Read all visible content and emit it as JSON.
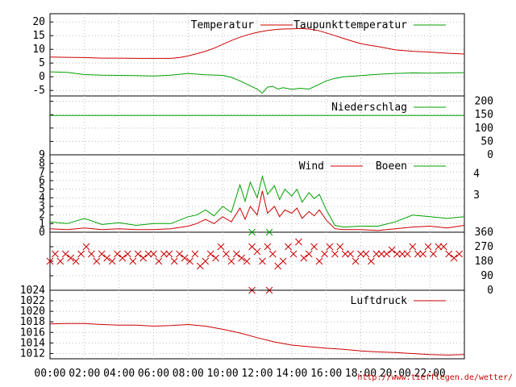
{
  "colors": {
    "red": "#cc0000",
    "green": "#00a000",
    "grid": "#bbbbbb"
  },
  "footer_url": "http://www.tiefflegen.de/wetter/",
  "x_axis": {
    "labels": [
      "00:00",
      "02:00",
      "04:00",
      "06:00",
      "08:00",
      "10:00",
      "12:00",
      "14:00",
      "16:00",
      "18:00",
      "20:00",
      "22:00"
    ],
    "hours": [
      0,
      2,
      4,
      6,
      8,
      10,
      12,
      14,
      16,
      18,
      20,
      22
    ]
  },
  "chart_data": [
    {
      "type": "line",
      "panel": "temperature",
      "ylim": [
        -7,
        23
      ],
      "yticks": [
        "20",
        "15",
        "10",
        "5",
        "0",
        "-5"
      ],
      "ytick_values": [
        20,
        15,
        10,
        5,
        0,
        -5
      ],
      "series": [
        {
          "name": "Temperatur",
          "color": "#cc0000",
          "x": [
            0,
            1,
            2,
            3,
            4,
            5,
            6,
            7,
            7.5,
            8,
            8.5,
            9,
            9.5,
            10,
            10.5,
            11,
            11.5,
            12,
            12.5,
            13,
            13.5,
            14,
            14.5,
            15,
            15.5,
            16,
            16.5,
            17,
            17.5,
            18,
            18.5,
            19,
            19.5,
            20,
            21,
            22,
            23,
            24
          ],
          "y": [
            7.2,
            7.1,
            7.0,
            6.8,
            6.8,
            6.7,
            6.7,
            6.7,
            7.0,
            7.6,
            8.4,
            9.3,
            10.4,
            11.8,
            13.2,
            14.4,
            15.4,
            16.2,
            16.8,
            17.2,
            17.4,
            17.5,
            17.6,
            17.4,
            16.9,
            16.0,
            15.0,
            14.0,
            13.0,
            12.1,
            11.5,
            11.0,
            10.4,
            9.8,
            9.3,
            9.0,
            8.6,
            8.3
          ]
        },
        {
          "name": "Taupunkttemperatur",
          "color": "#00a000",
          "x": [
            0,
            1,
            2,
            3,
            4,
            5,
            6,
            7,
            8,
            9,
            10,
            10.5,
            11,
            11.5,
            12,
            12.3,
            12.6,
            12.9,
            13.2,
            13.5,
            14,
            14.5,
            15,
            15.5,
            16,
            16.5,
            17,
            18,
            19,
            20,
            21,
            22,
            23,
            24
          ],
          "y": [
            1.8,
            1.6,
            0.8,
            0.6,
            0.5,
            0.4,
            0.3,
            0.6,
            1.2,
            0.7,
            0.5,
            -0.2,
            -1.5,
            -3.0,
            -4.5,
            -6.0,
            -3.8,
            -3.5,
            -4.5,
            -4.0,
            -4.6,
            -4.2,
            -4.5,
            -3.0,
            -1.5,
            -0.6,
            0.0,
            0.4,
            0.9,
            1.2,
            1.4,
            1.3,
            1.4,
            1.5
          ]
        }
      ]
    },
    {
      "type": "line",
      "panel": "precipitation",
      "ylim": [
        0,
        220
      ],
      "yticks": [
        "200",
        "150",
        "100",
        "50",
        "0"
      ],
      "ytick_values": [
        200,
        150,
        100,
        50,
        0
      ],
      "series": [
        {
          "name": "Niederschlag",
          "color": "#00a000",
          "x": [
            0,
            24
          ],
          "y": [
            147,
            147
          ]
        }
      ]
    },
    {
      "type": "line",
      "panel": "wind",
      "ylim": [
        0,
        9
      ],
      "yticks": [
        "9",
        "8",
        "7",
        "6",
        "5",
        "4",
        "3",
        "2",
        "1",
        "0"
      ],
      "ytick_values": [
        9,
        8,
        7,
        6,
        5,
        4,
        3,
        2,
        1,
        0
      ],
      "right_labels": [
        "4",
        "3"
      ],
      "right_label_values": [
        6.8,
        4.3
      ],
      "series": [
        {
          "name": "Wind",
          "color": "#cc0000",
          "x": [
            0,
            1,
            2,
            3,
            4,
            5,
            6,
            7,
            8,
            8.5,
            9,
            9.5,
            10,
            10.5,
            11,
            11.3,
            11.6,
            12,
            12.3,
            12.6,
            13,
            13.3,
            13.6,
            14,
            14.3,
            14.6,
            15,
            15.3,
            15.6,
            16,
            16.5,
            17,
            18,
            19,
            20,
            21,
            22,
            23,
            24
          ],
          "y": [
            0.4,
            0.3,
            0.5,
            0.3,
            0.4,
            0.3,
            0.3,
            0.4,
            0.7,
            1.0,
            1.5,
            1.0,
            1.8,
            1.2,
            2.8,
            1.5,
            3.0,
            2.0,
            4.8,
            2.2,
            3.0,
            1.8,
            2.6,
            2.2,
            2.8,
            1.6,
            2.4,
            1.9,
            2.6,
            1.4,
            0.4,
            0.3,
            0.3,
            0.2,
            0.4,
            0.6,
            0.7,
            0.5,
            0.8
          ]
        },
        {
          "name": "Boeen",
          "color": "#00a000",
          "x": [
            0,
            1,
            2,
            3,
            4,
            5,
            6,
            7,
            8,
            8.5,
            9,
            9.5,
            10,
            10.5,
            11,
            11.3,
            11.6,
            12,
            12.3,
            12.6,
            13,
            13.3,
            13.6,
            14,
            14.3,
            14.6,
            15,
            15.3,
            15.6,
            16,
            16.5,
            17,
            18,
            19,
            20,
            21,
            22,
            23,
            24
          ],
          "y": [
            1.2,
            1.0,
            1.6,
            0.9,
            1.1,
            0.8,
            1.0,
            1.0,
            1.8,
            2.0,
            2.6,
            1.9,
            3.0,
            2.3,
            5.5,
            3.6,
            5.8,
            4.0,
            6.5,
            4.4,
            5.4,
            3.8,
            5.0,
            4.2,
            5.0,
            3.5,
            4.6,
            3.9,
            4.4,
            2.6,
            0.8,
            0.6,
            0.7,
            0.7,
            1.2,
            2.0,
            1.8,
            1.6,
            1.8
          ]
        }
      ]
    },
    {
      "type": "scatter",
      "panel": "wind_direction",
      "ylim": [
        0,
        360
      ],
      "yticks": [
        "360",
        "270",
        "180",
        "90",
        "0"
      ],
      "ytick_values": [
        360,
        270,
        180,
        90,
        0
      ],
      "series": [
        {
          "name": "",
          "color": "#cc0000",
          "x": [
            0,
            0.3,
            0.6,
            0.9,
            1.2,
            1.5,
            1.8,
            2.1,
            2.4,
            2.7,
            3.0,
            3.3,
            3.6,
            3.9,
            4.2,
            4.5,
            4.8,
            5.1,
            5.4,
            5.7,
            6.0,
            6.3,
            6.6,
            6.9,
            7.2,
            7.5,
            7.8,
            8.1,
            8.4,
            8.7,
            9.0,
            9.3,
            9.6,
            9.9,
            10.2,
            10.5,
            10.8,
            11.1,
            11.4,
            11.7,
            12.0,
            12.3,
            12.6,
            12.9,
            13.2,
            13.5,
            13.8,
            14.1,
            14.4,
            14.7,
            15.0,
            15.3,
            15.6,
            15.9,
            16.2,
            16.5,
            16.8,
            17.1,
            17.4,
            17.7,
            18.0,
            18.3,
            18.6,
            18.9,
            19.2,
            19.5,
            19.8,
            20.1,
            20.4,
            20.7,
            21.0,
            21.3,
            21.6,
            21.9,
            22.2,
            22.5,
            22.8,
            23.1,
            23.4,
            23.7
          ],
          "y": [
            180,
            225,
            180,
            225,
            200,
            180,
            225,
            270,
            225,
            180,
            225,
            200,
            180,
            225,
            200,
            225,
            180,
            225,
            200,
            225,
            225,
            180,
            225,
            225,
            180,
            225,
            200,
            180,
            225,
            150,
            180,
            225,
            200,
            270,
            225,
            180,
            225,
            200,
            180,
            270,
            240,
            180,
            270,
            225,
            150,
            180,
            270,
            225,
            300,
            200,
            225,
            270,
            180,
            225,
            270,
            225,
            270,
            225,
            225,
            180,
            225,
            225,
            180,
            225,
            225,
            225,
            250,
            225,
            225,
            225,
            270,
            225,
            225,
            270,
            225,
            270,
            270,
            225,
            200,
            225
          ]
        },
        {
          "name": "",
          "color": "#00a000",
          "x": [
            11.7,
            12.7
          ],
          "y": [
            360,
            360
          ]
        },
        {
          "name": "",
          "color": "#cc0000",
          "x": [
            11.7,
            12.7
          ],
          "y": [
            0,
            0
          ]
        }
      ]
    },
    {
      "type": "line",
      "panel": "pressure",
      "ylim": [
        1011,
        1024
      ],
      "yticks": [
        "1024",
        "1022",
        "1020",
        "1018",
        "1016",
        "1014",
        "1012"
      ],
      "ytick_values": [
        1024,
        1022,
        1020,
        1018,
        1016,
        1014,
        1012
      ],
      "series": [
        {
          "name": "Luftdruck",
          "color": "#cc0000",
          "x": [
            0,
            1,
            2,
            3,
            4,
            5,
            6,
            7,
            8,
            9,
            10,
            11,
            12,
            13,
            14,
            15,
            16,
            17,
            18,
            19,
            20,
            21,
            22,
            23,
            24
          ],
          "y": [
            1017.6,
            1017.7,
            1017.7,
            1017.5,
            1017.4,
            1017.4,
            1017.2,
            1017.3,
            1017.5,
            1017.2,
            1016.6,
            1015.9,
            1015.0,
            1014.2,
            1013.6,
            1013.3,
            1013.0,
            1012.8,
            1012.5,
            1012.3,
            1012.2,
            1012.0,
            1011.8,
            1011.7,
            1011.8
          ]
        }
      ]
    }
  ]
}
